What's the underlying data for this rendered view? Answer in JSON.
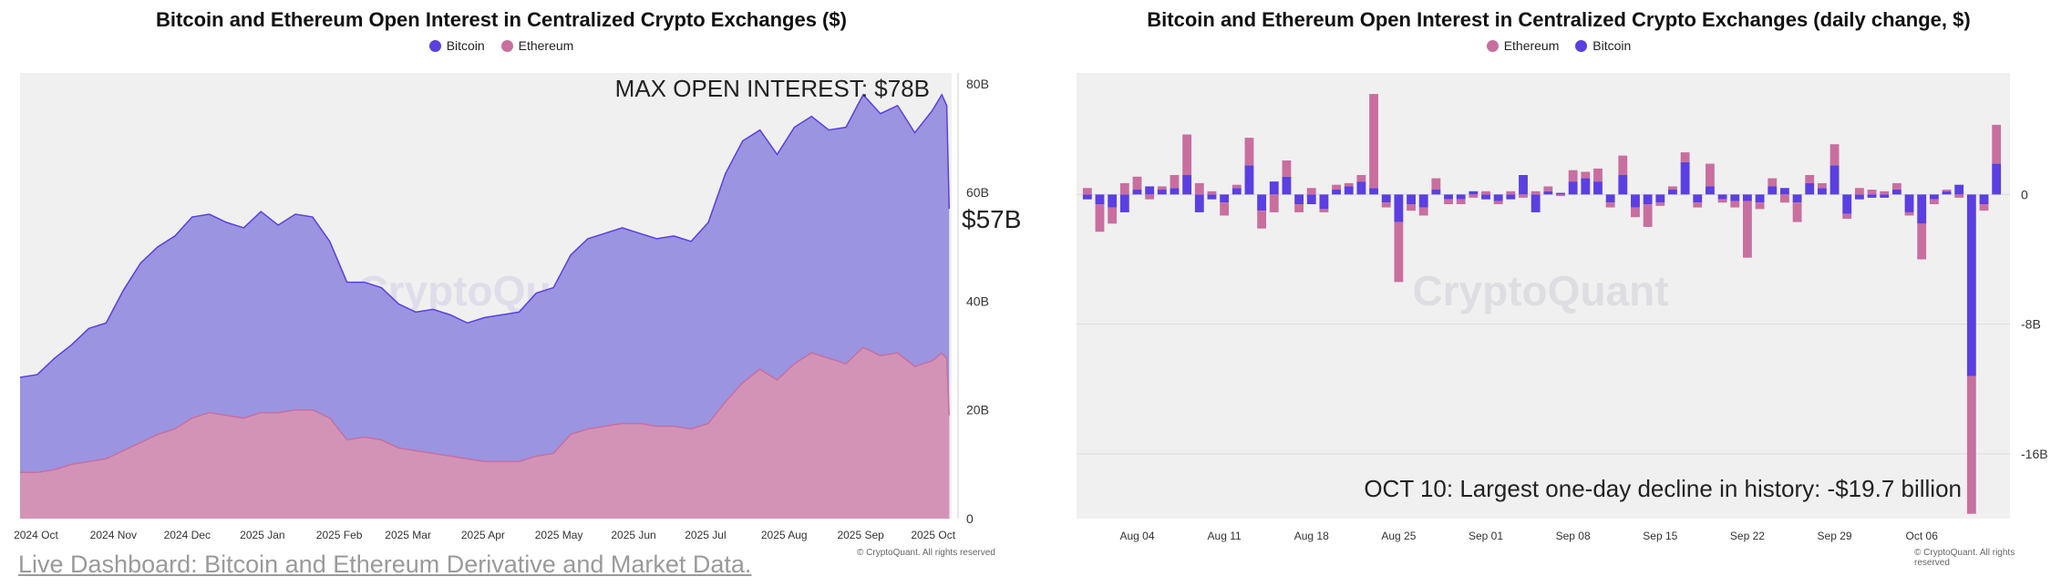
{
  "footer": {
    "link_text": "Live Dashboard: Bitcoin and Ethereum Derivative and Market Data."
  },
  "watermark": "CryptoQuant",
  "copyright": "© CryptoQuant. All rights reserved",
  "colors": {
    "bitcoin": "#5b3fe0",
    "bitcoin_fill": "#9b94e0",
    "ethereum": "#c86f9f",
    "ethereum_fill": "#d393b7",
    "plot_bg": "#f0f0f0"
  },
  "chart_data": [
    {
      "type": "area",
      "title": "Bitcoin and Ethereum Open Interest in Centralized Crypto Exchanges ($)",
      "legend": [
        "Bitcoin",
        "Ethereum"
      ],
      "annotation": "MAX OPEN INTEREST: $78B",
      "last_value_label": "$57B",
      "y_unit": "B USD",
      "ylim": [
        0,
        82
      ],
      "y_ticks": [
        "0",
        "20B",
        "40B",
        "60B",
        "80B"
      ],
      "x_ticks": [
        "2024 Oct",
        "2024 Nov",
        "2024 Dec",
        "2025 Jan",
        "2025 Feb",
        "2025 Mar",
        "2025 Apr",
        "2025 May",
        "2025 Jun",
        "2025 Jul",
        "2025 Aug",
        "2025 Sep",
        "2025 Oct"
      ],
      "x_range": [
        "2024-09-28",
        "2025-10-12"
      ],
      "grid": false,
      "legend_position": "top-center",
      "series": [
        {
          "name": "Bitcoin",
          "stacked": true,
          "x": [
            "2024-09-28",
            "2024-10-05",
            "2024-10-12",
            "2024-10-19",
            "2024-10-26",
            "2024-11-02",
            "2024-11-09",
            "2024-11-16",
            "2024-11-23",
            "2024-11-30",
            "2024-12-07",
            "2024-12-14",
            "2024-12-21",
            "2024-12-28",
            "2025-01-04",
            "2025-01-11",
            "2025-01-18",
            "2025-01-25",
            "2025-02-01",
            "2025-02-08",
            "2025-02-15",
            "2025-02-22",
            "2025-03-01",
            "2025-03-08",
            "2025-03-15",
            "2025-03-22",
            "2025-03-29",
            "2025-04-05",
            "2025-04-12",
            "2025-04-19",
            "2025-04-26",
            "2025-05-03",
            "2025-05-10",
            "2025-05-17",
            "2025-05-24",
            "2025-05-31",
            "2025-06-07",
            "2025-06-14",
            "2025-06-21",
            "2025-06-28",
            "2025-07-05",
            "2025-07-12",
            "2025-07-19",
            "2025-07-26",
            "2025-08-02",
            "2025-08-09",
            "2025-08-16",
            "2025-08-23",
            "2025-08-30",
            "2025-09-06",
            "2025-09-13",
            "2025-09-20",
            "2025-09-27",
            "2025-10-04",
            "2025-10-08",
            "2025-10-10",
            "2025-10-11"
          ],
          "values": [
            17.5,
            18.0,
            20.5,
            22.0,
            24.5,
            25.0,
            29.5,
            33.0,
            34.5,
            35.5,
            37.0,
            36.5,
            35.5,
            35.0,
            37.0,
            34.5,
            36.0,
            35.5,
            32.5,
            29.0,
            28.5,
            28.0,
            26.5,
            25.5,
            26.5,
            26.0,
            25.0,
            26.5,
            27.0,
            27.5,
            30.0,
            30.5,
            33.0,
            35.0,
            35.5,
            36.0,
            35.0,
            34.5,
            35.0,
            34.5,
            37.0,
            42.0,
            44.5,
            44.0,
            41.5,
            43.5,
            43.5,
            42.0,
            43.5,
            46.5,
            44.5,
            45.5,
            43.0,
            46.0,
            47.5,
            46.5,
            38.0
          ]
        },
        {
          "name": "Ethereum",
          "stacked": true,
          "x": [
            "2024-09-28",
            "2024-10-05",
            "2024-10-12",
            "2024-10-19",
            "2024-10-26",
            "2024-11-02",
            "2024-11-09",
            "2024-11-16",
            "2024-11-23",
            "2024-11-30",
            "2024-12-07",
            "2024-12-14",
            "2024-12-21",
            "2024-12-28",
            "2025-01-04",
            "2025-01-11",
            "2025-01-18",
            "2025-01-25",
            "2025-02-01",
            "2025-02-08",
            "2025-02-15",
            "2025-02-22",
            "2025-03-01",
            "2025-03-08",
            "2025-03-15",
            "2025-03-22",
            "2025-03-29",
            "2025-04-05",
            "2025-04-12",
            "2025-04-19",
            "2025-04-26",
            "2025-05-03",
            "2025-05-10",
            "2025-05-17",
            "2025-05-24",
            "2025-05-31",
            "2025-06-07",
            "2025-06-14",
            "2025-06-21",
            "2025-06-28",
            "2025-07-05",
            "2025-07-12",
            "2025-07-19",
            "2025-07-26",
            "2025-08-02",
            "2025-08-09",
            "2025-08-16",
            "2025-08-23",
            "2025-08-30",
            "2025-09-06",
            "2025-09-13",
            "2025-09-20",
            "2025-09-27",
            "2025-10-04",
            "2025-10-08",
            "2025-10-10",
            "2025-10-11"
          ],
          "values": [
            8.5,
            8.5,
            9.0,
            10.0,
            10.5,
            11.0,
            12.5,
            14.0,
            15.5,
            16.5,
            18.5,
            19.5,
            19.0,
            18.5,
            19.5,
            19.5,
            20.0,
            20.0,
            18.5,
            14.5,
            15.0,
            14.5,
            13.0,
            12.5,
            12.0,
            11.5,
            11.0,
            10.5,
            10.5,
            10.5,
            11.5,
            12.0,
            15.5,
            16.5,
            17.0,
            17.5,
            17.5,
            17.0,
            17.0,
            16.5,
            17.5,
            21.5,
            25.0,
            27.5,
            25.5,
            28.5,
            30.5,
            29.5,
            28.5,
            31.5,
            30.0,
            30.5,
            28.0,
            29.0,
            30.5,
            29.5,
            19.0
          ]
        }
      ]
    },
    {
      "type": "bar",
      "title": "Bitcoin and Ethereum Open Interest in Centralized Crypto Exchanges (daily change, $)",
      "legend": [
        "Ethereum",
        "Bitcoin"
      ],
      "annotation": "OCT 10: Largest one-day decline in history: -$19.7 billion",
      "y_unit": "B USD",
      "ylim": [
        -20.0,
        7.5
      ],
      "y_ticks": [
        "0",
        "-8B",
        "-16B"
      ],
      "x_ticks": [
        "Aug 04",
        "Aug 11",
        "Aug 18",
        "Aug 25",
        "Sep 01",
        "Sep 08",
        "Sep 15",
        "Sep 22",
        "Sep 29",
        "Oct 06"
      ],
      "grid": true,
      "legend_position": "top-center",
      "stacked": true,
      "categories": [
        "Jul 31",
        "Aug 01",
        "Aug 02",
        "Aug 03",
        "Aug 04",
        "Aug 05",
        "Aug 06",
        "Aug 07",
        "Aug 08",
        "Aug 09",
        "Aug 10",
        "Aug 11",
        "Aug 12",
        "Aug 13",
        "Aug 14",
        "Aug 15",
        "Aug 16",
        "Aug 17",
        "Aug 18",
        "Aug 19",
        "Aug 20",
        "Aug 21",
        "Aug 22",
        "Aug 23",
        "Aug 24",
        "Aug 25",
        "Aug 26",
        "Aug 27",
        "Aug 28",
        "Aug 29",
        "Aug 30",
        "Aug 31",
        "Sep 01",
        "Sep 02",
        "Sep 03",
        "Sep 04",
        "Sep 05",
        "Sep 06",
        "Sep 07",
        "Sep 08",
        "Sep 09",
        "Sep 10",
        "Sep 11",
        "Sep 12",
        "Sep 13",
        "Sep 14",
        "Sep 15",
        "Sep 16",
        "Sep 17",
        "Sep 18",
        "Sep 19",
        "Sep 20",
        "Sep 21",
        "Sep 22",
        "Sep 23",
        "Sep 24",
        "Sep 25",
        "Sep 26",
        "Sep 27",
        "Sep 28",
        "Sep 29",
        "Sep 30",
        "Oct 01",
        "Oct 02",
        "Oct 03",
        "Oct 04",
        "Oct 05",
        "Oct 06",
        "Oct 07",
        "Oct 08",
        "Oct 09",
        "Oct 10",
        "Oct 11",
        "Oct 12"
      ],
      "series": [
        {
          "name": "Bitcoin",
          "values": [
            -0.3,
            -0.6,
            -0.8,
            -1.1,
            0.3,
            0.5,
            0.3,
            0.4,
            1.2,
            -1.1,
            -0.3,
            -0.5,
            0.4,
            1.8,
            -1.0,
            0.8,
            1.1,
            -0.6,
            -0.6,
            -0.9,
            0.3,
            0.5,
            0.8,
            0.4,
            -0.5,
            -1.7,
            -0.6,
            -0.8,
            0.3,
            -0.3,
            -0.3,
            0.2,
            -0.3,
            -0.4,
            -0.3,
            1.2,
            -1.1,
            0.2,
            0.1,
            0.8,
            1.0,
            0.8,
            -0.5,
            1.2,
            -0.8,
            -0.6,
            -0.5,
            0.3,
            2.0,
            -0.5,
            0.5,
            -0.3,
            -0.4,
            -0.4,
            -0.5,
            0.5,
            0.4,
            -0.5,
            0.7,
            0.4,
            1.8,
            -1.2,
            -0.3,
            -0.2,
            -0.2,
            0.3,
            -1.1,
            -1.8,
            -0.3,
            0.2,
            0.6,
            -11.2,
            -0.6,
            1.9
          ],
          "color": "#5b3fe0"
        },
        {
          "name": "Ethereum",
          "values": [
            0.4,
            -1.7,
            -1.0,
            0.7,
            0.8,
            -0.3,
            0.2,
            0.8,
            2.5,
            0.7,
            0.2,
            -0.8,
            0.2,
            1.7,
            -1.1,
            -1.1,
            1.0,
            -0.5,
            0.4,
            -0.2,
            0.3,
            0.2,
            0.4,
            5.8,
            -0.3,
            -3.7,
            -0.4,
            -0.5,
            0.7,
            -0.3,
            -0.3,
            -0.2,
            0.2,
            -0.2,
            0.2,
            -0.2,
            0.2,
            0.3,
            -0.1,
            0.7,
            0.4,
            0.8,
            -0.3,
            1.2,
            -0.6,
            -1.4,
            -0.2,
            0.2,
            0.6,
            -0.3,
            1.4,
            -0.2,
            -0.4,
            -3.5,
            -0.4,
            0.5,
            -0.5,
            -1.2,
            0.5,
            0.3,
            1.3,
            -0.3,
            0.4,
            0.3,
            0.2,
            0.4,
            -0.2,
            -2.2,
            -0.3,
            0.1,
            -0.2,
            -8.5,
            -0.4,
            2.4
          ],
          "color": "#c86f9f"
        }
      ]
    }
  ]
}
